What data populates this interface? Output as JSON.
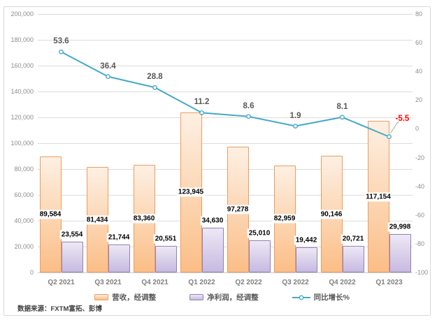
{
  "source_note": "数据来源：FXTM富拓、彭博",
  "colors": {
    "grid": "#DCDCDC",
    "axis_text": "#8C8C8C",
    "category_text": "#7F7F7F",
    "bar_label_text": "#000000",
    "line_label_text": "#595959",
    "negative_label_text": "#FF0000",
    "leader_line": "#A9A9A9",
    "frame_border": "#D8D8D8"
  },
  "chart_data": {
    "type": "bar",
    "subtype": "combo-bar-line",
    "categories": [
      "Q2 2021",
      "Q3 2021",
      "Q4 2021",
      "Q1 2022",
      "Q2 2022",
      "Q3 2022",
      "Q4 2022",
      "Q1 2023"
    ],
    "series": [
      {
        "name": "营收，经调整",
        "type": "bar",
        "axis": "left",
        "values": [
          89584,
          81434,
          83360,
          123945,
          97278,
          82959,
          90146,
          117154
        ],
        "fill_top": "#FDF0E3",
        "fill_bottom": "#FBBE87",
        "border": "#ED9C5F",
        "label_placement": "inside-center"
      },
      {
        "name": "净利润，经调整",
        "type": "bar",
        "axis": "left",
        "values": [
          23554,
          21744,
          20551,
          34630,
          25010,
          19442,
          20721,
          29998
        ],
        "fill_top": "#EDE8F5",
        "fill_bottom": "#C7BAE1",
        "border": "#9480B8",
        "label_placement": "above"
      },
      {
        "name": "同比增长%",
        "type": "line",
        "axis": "right",
        "values": [
          53.6,
          36.4,
          28.8,
          11.2,
          8.6,
          1.9,
          8.1,
          -5.5
        ],
        "color": "#45A9C6",
        "marker": "circle-white-fill",
        "last_label_color": "#FF0000",
        "last_label_callout": true
      }
    ],
    "left_axis": {
      "min": 0,
      "max": 200000,
      "step": 20000,
      "format": "thousands-comma"
    },
    "right_axis": {
      "min": -100,
      "max": 80,
      "step": 20,
      "format": "plain"
    },
    "grid": true,
    "legend_position": "bottom"
  }
}
